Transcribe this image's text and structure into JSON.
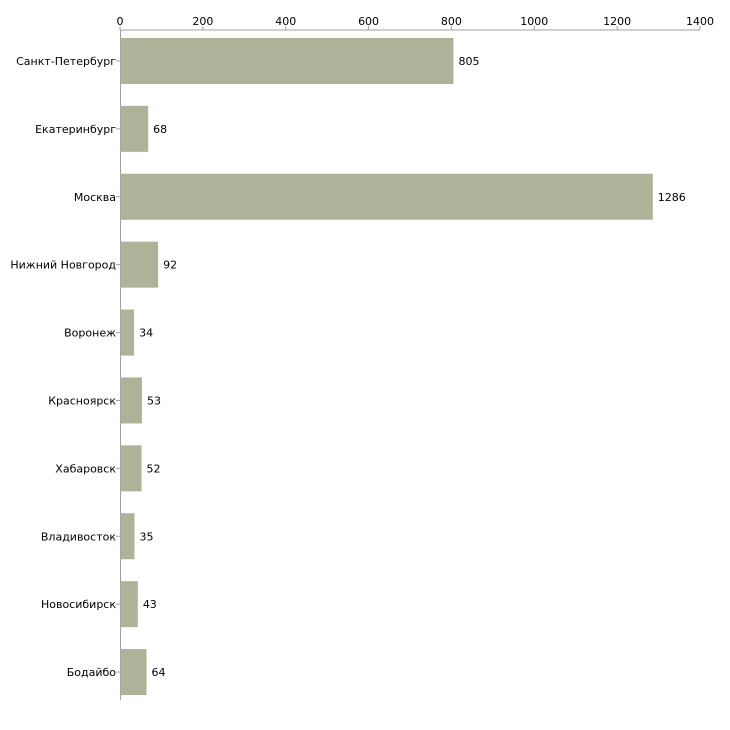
{
  "colors": {
    "bar": "#acb398",
    "axis": "#a0a0a0",
    "background": "#ffffff"
  },
  "chart_data": {
    "type": "bar",
    "orientation": "horizontal",
    "title": "",
    "xlabel": "",
    "ylabel": "",
    "xlim": [
      0,
      1400
    ],
    "ticks": [
      0,
      200,
      400,
      600,
      800,
      1000,
      1200,
      1400
    ],
    "grid": false,
    "legend": "none",
    "categories": [
      "Санкт-Петербург",
      "Екатеринбург",
      "Москва",
      "Нижний Новгород",
      "Воронеж",
      "Красноярск",
      "Хабаровск",
      "Владивосток",
      "Новосибирск",
      "Бодайбо"
    ],
    "values": [
      805,
      68,
      1286,
      92,
      34,
      53,
      52,
      35,
      43,
      64
    ]
  }
}
